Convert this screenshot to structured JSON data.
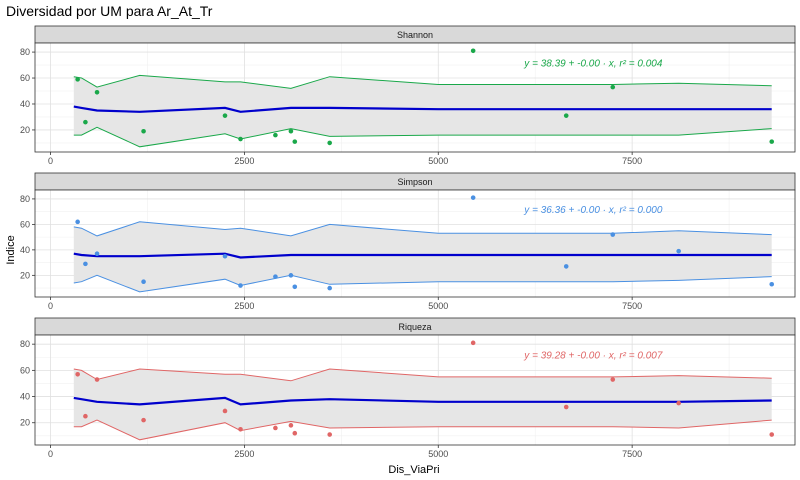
{
  "title": "Diversidad por UM para Ar_At_Tr",
  "chart_data": {
    "type": "scatter",
    "xlabel": "Dis_ViaPri",
    "ylabel": "Indice",
    "xlim": [
      -200,
      9600
    ],
    "x_ticks": [
      0,
      2500,
      5000,
      7500
    ],
    "grid": true,
    "band_x": [
      300,
      400,
      600,
      1150,
      2250,
      2450,
      3100,
      3600,
      5000,
      7250,
      8100,
      9300
    ],
    "panels": [
      {
        "name": "Shannon",
        "color": "#1aa84a",
        "ylim": [
          3,
          87
        ],
        "y_ticks": [
          20,
          40,
          60,
          80
        ],
        "equation": "y = 38.39 + -0.00 · x,  r² = 0.004",
        "equation_x": 7000,
        "equation_y": 69,
        "points": [
          {
            "x": 350,
            "y": 59
          },
          {
            "x": 450,
            "y": 26
          },
          {
            "x": 600,
            "y": 49
          },
          {
            "x": 1200,
            "y": 19
          },
          {
            "x": 2250,
            "y": 31
          },
          {
            "x": 2450,
            "y": 13
          },
          {
            "x": 2900,
            "y": 16
          },
          {
            "x": 3100,
            "y": 19
          },
          {
            "x": 3150,
            "y": 11
          },
          {
            "x": 3600,
            "y": 10
          },
          {
            "x": 5450,
            "y": 81
          },
          {
            "x": 6650,
            "y": 31
          },
          {
            "x": 7250,
            "y": 53
          },
          {
            "x": 9300,
            "y": 11
          }
        ],
        "fit": [
          38,
          37,
          35,
          34,
          37,
          34,
          37,
          37,
          36,
          36,
          36,
          36
        ],
        "band_upper": [
          61,
          60,
          53,
          62,
          57,
          57,
          52,
          61,
          55,
          55,
          56,
          54
        ],
        "band_lower": [
          16,
          16,
          22,
          7,
          17,
          13,
          21,
          15,
          16,
          16,
          16,
          21
        ]
      },
      {
        "name": "Simpson",
        "color": "#4a90e2",
        "ylim": [
          3,
          87
        ],
        "y_ticks": [
          20,
          40,
          60,
          80
        ],
        "equation": "y = 36.36 + -0.00 · x,  r² = 0.000",
        "equation_x": 7000,
        "equation_y": 69,
        "points": [
          {
            "x": 350,
            "y": 62
          },
          {
            "x": 450,
            "y": 29
          },
          {
            "x": 600,
            "y": 37
          },
          {
            "x": 1200,
            "y": 15
          },
          {
            "x": 2250,
            "y": 35
          },
          {
            "x": 2450,
            "y": 12
          },
          {
            "x": 2900,
            "y": 19
          },
          {
            "x": 3100,
            "y": 20
          },
          {
            "x": 3150,
            "y": 11
          },
          {
            "x": 3600,
            "y": 10
          },
          {
            "x": 5450,
            "y": 81
          },
          {
            "x": 6650,
            "y": 27
          },
          {
            "x": 7250,
            "y": 52
          },
          {
            "x": 8100,
            "y": 39
          },
          {
            "x": 9300,
            "y": 13
          }
        ],
        "fit": [
          37,
          36,
          35,
          35,
          37,
          34,
          36,
          36,
          36,
          36,
          36,
          36
        ],
        "band_upper": [
          58,
          57,
          51,
          62,
          56,
          57,
          51,
          60,
          53,
          53,
          55,
          52
        ],
        "band_lower": [
          14,
          15,
          20,
          7,
          17,
          12,
          20,
          13,
          15,
          15,
          16,
          19
        ]
      },
      {
        "name": "Riqueza",
        "color": "#e06666",
        "ylim": [
          3,
          87
        ],
        "y_ticks": [
          20,
          40,
          60,
          80
        ],
        "equation": "y = 39.28 + -0.00 · x,  r² = 0.007",
        "equation_x": 7000,
        "equation_y": 69,
        "points": [
          {
            "x": 350,
            "y": 57
          },
          {
            "x": 450,
            "y": 25
          },
          {
            "x": 600,
            "y": 53
          },
          {
            "x": 1200,
            "y": 22
          },
          {
            "x": 2250,
            "y": 29
          },
          {
            "x": 2450,
            "y": 15
          },
          {
            "x": 2900,
            "y": 16
          },
          {
            "x": 3100,
            "y": 18
          },
          {
            "x": 3150,
            "y": 12
          },
          {
            "x": 3600,
            "y": 11
          },
          {
            "x": 5450,
            "y": 81
          },
          {
            "x": 6650,
            "y": 32
          },
          {
            "x": 7250,
            "y": 53
          },
          {
            "x": 8100,
            "y": 35
          },
          {
            "x": 9300,
            "y": 11
          }
        ],
        "fit": [
          39,
          38,
          36,
          34,
          39,
          34,
          37,
          38,
          36,
          36,
          36,
          37
        ],
        "band_upper": [
          61,
          60,
          53,
          61,
          57,
          57,
          52,
          61,
          55,
          55,
          56,
          54
        ],
        "band_lower": [
          17,
          17,
          22,
          7,
          20,
          14,
          21,
          16,
          17,
          17,
          16,
          22
        ]
      }
    ]
  }
}
